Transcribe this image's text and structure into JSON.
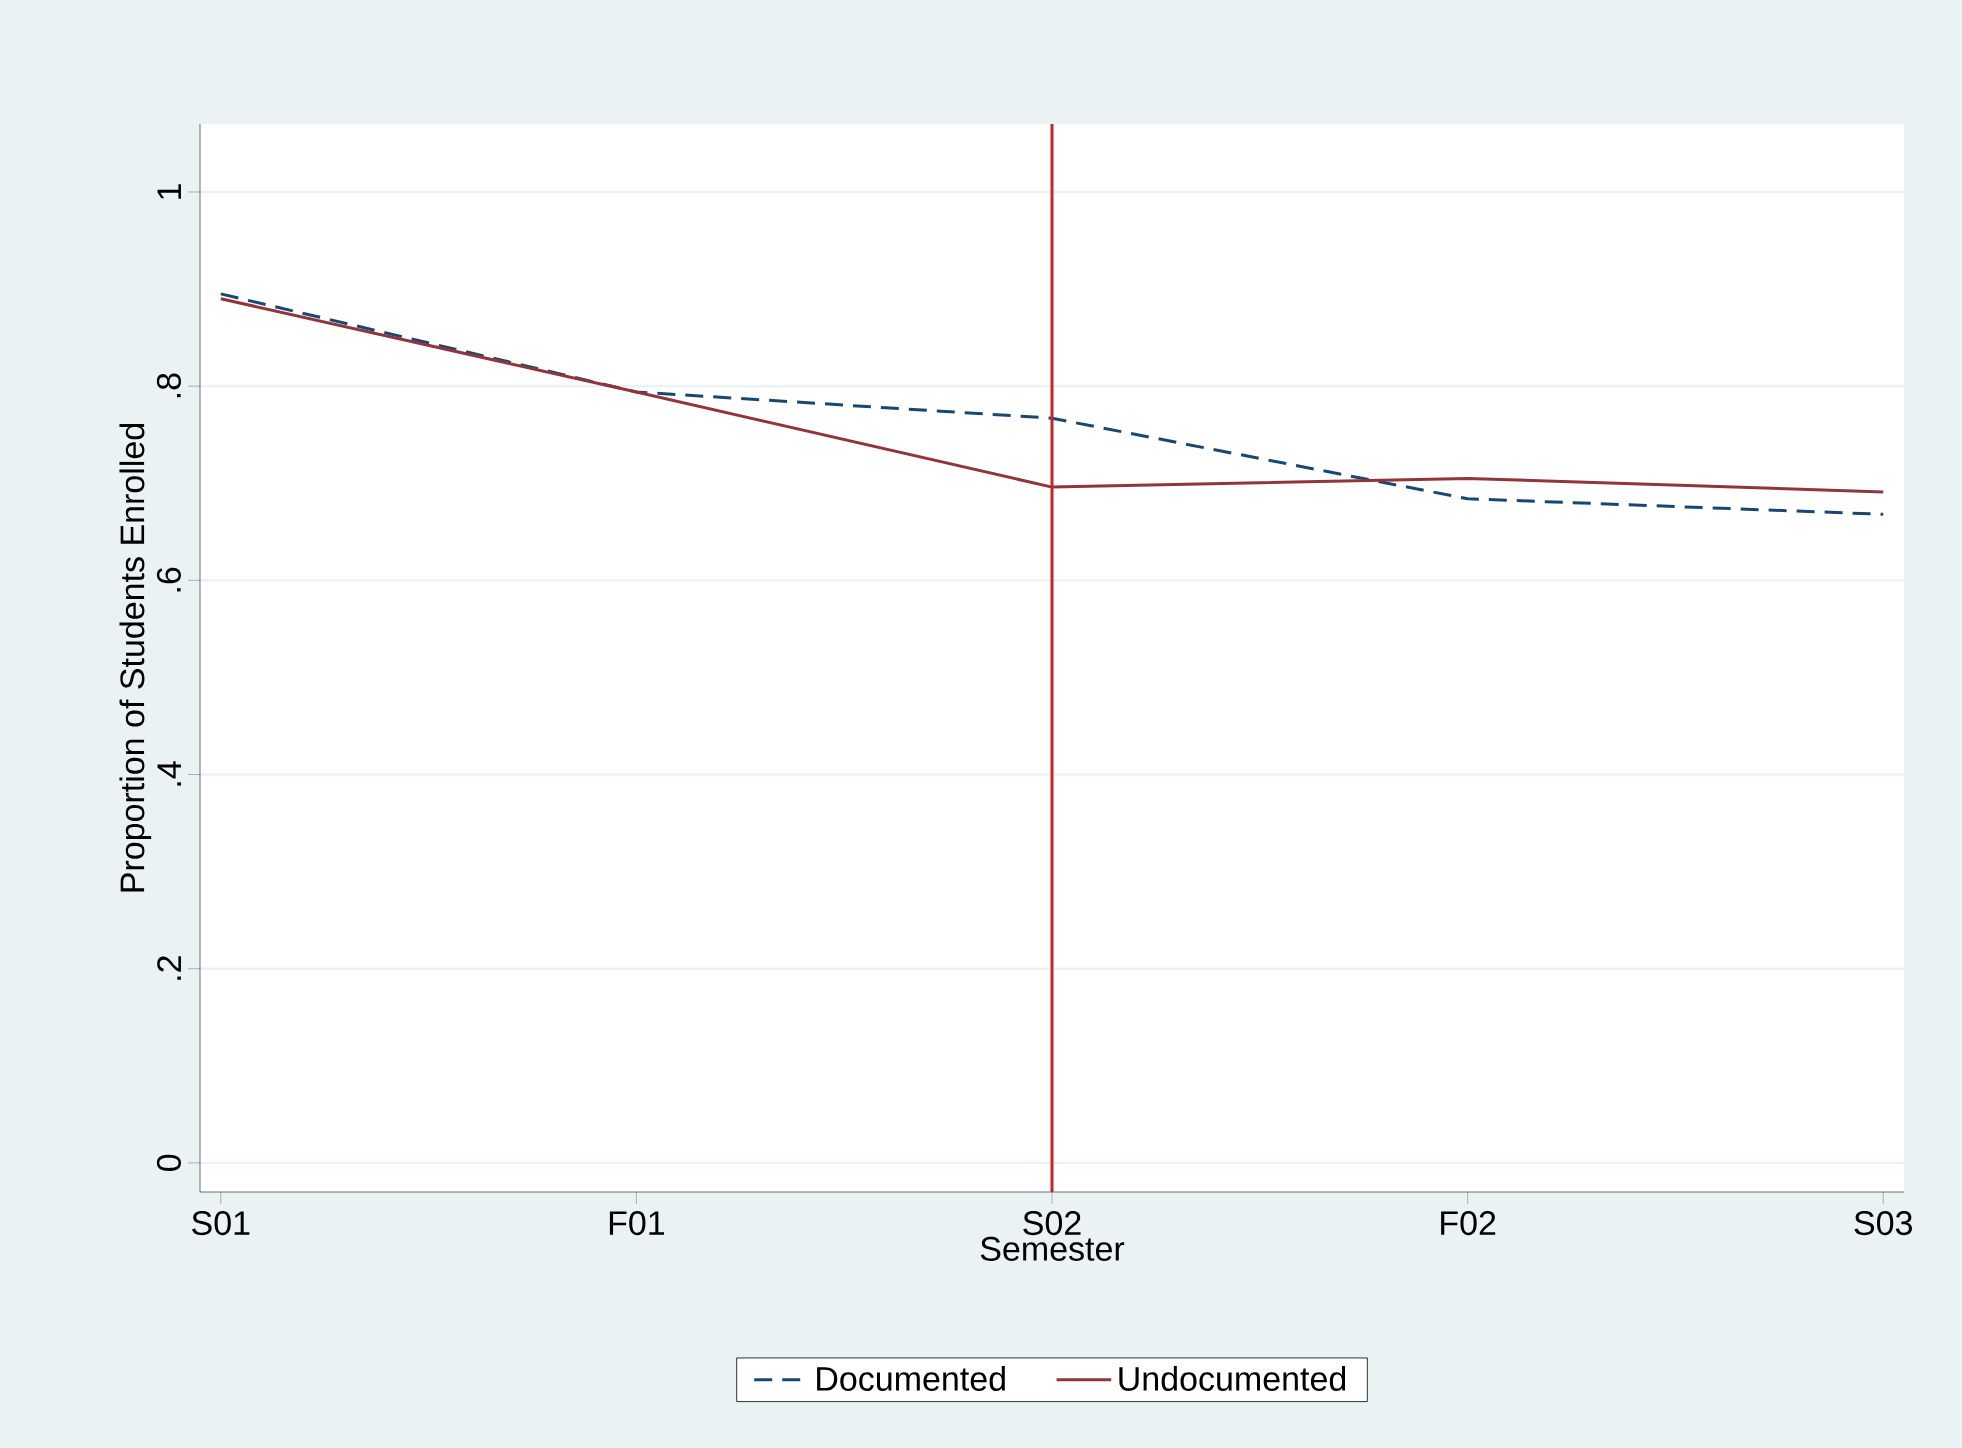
{
  "chart_data": {
    "type": "line",
    "xlabel": "Semester",
    "ylabel": "Proportion of Students Enrolled",
    "categories": [
      "S01",
      "F01",
      "S02",
      "F02",
      "S03"
    ],
    "series": [
      {
        "name": "Documented",
        "color": "#1a476f",
        "line_style": "dashed",
        "values": [
          0.895,
          0.794,
          0.767,
          0.684,
          0.668
        ]
      },
      {
        "name": "Undocumented",
        "color": "#90353b",
        "line_style": "solid",
        "values": [
          0.89,
          0.794,
          0.696,
          0.705,
          0.691
        ]
      }
    ],
    "ylim": [
      -0.03,
      1.07
    ],
    "yticks": [
      {
        "value": 0,
        "label": "0"
      },
      {
        "value": 0.2,
        "label": ".2"
      },
      {
        "value": 0.4,
        "label": ".4"
      },
      {
        "value": 0.6,
        "label": ".6"
      },
      {
        "value": 0.8,
        "label": ".8"
      },
      {
        "value": 1,
        "label": "1"
      }
    ],
    "ref_lines": [
      {
        "axis": "x",
        "value": "S02",
        "color": "#c1272d"
      }
    ],
    "grid": "y",
    "legend": "bottom",
    "marker": "none"
  }
}
